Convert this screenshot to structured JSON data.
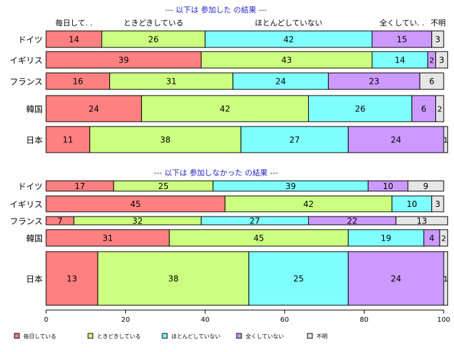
{
  "chart_data": {
    "type": "bar",
    "orientation": "horizontal-stacked",
    "xlim": [
      0,
      100
    ],
    "x_ticks": [
      "0",
      "20",
      "40",
      "60",
      "80",
      "100"
    ],
    "grid": false,
    "legend_position": "bottom",
    "legend": [
      {
        "name": "毎日している",
        "color": "#FF8080"
      },
      {
        "name": "ときどきしている",
        "color": "#CCFF80"
      },
      {
        "name": "ほとんどしていない",
        "color": "#80FFFF"
      },
      {
        "name": "全くしていない",
        "color": "#CC99FF"
      },
      {
        "name": "不明",
        "color": "#E6E6E6"
      }
    ],
    "panels": [
      {
        "title": "--- 以下は 参加した の結果 ---",
        "column_labels": [
          "毎日して. .",
          "ときどきしている",
          "ほとんどしていない",
          "全くしてい. .",
          "不明"
        ],
        "categories": [
          "ドイツ",
          "イギリス",
          "フランス",
          "韓国",
          "日本"
        ],
        "values": [
          [
            14,
            26,
            42,
            15,
            3
          ],
          [
            39,
            43,
            14,
            2,
            3
          ],
          [
            16,
            31,
            24,
            23,
            6
          ],
          [
            24,
            42,
            26,
            6,
            2
          ],
          [
            11,
            38,
            27,
            24,
            1
          ]
        ]
      },
      {
        "title": "--- 以下は 参加しなかった の結果 ---",
        "column_labels": [],
        "categories": [
          "ドイツ",
          "イギリス",
          "フランス",
          "韓国",
          "日本"
        ],
        "values": [
          [
            17,
            25,
            39,
            10,
            9
          ],
          [
            45,
            42,
            10,
            0,
            3
          ],
          [
            7,
            32,
            27,
            22,
            13
          ],
          [
            31,
            45,
            19,
            4,
            2
          ],
          [
            13,
            38,
            25,
            24,
            1
          ]
        ]
      }
    ]
  }
}
